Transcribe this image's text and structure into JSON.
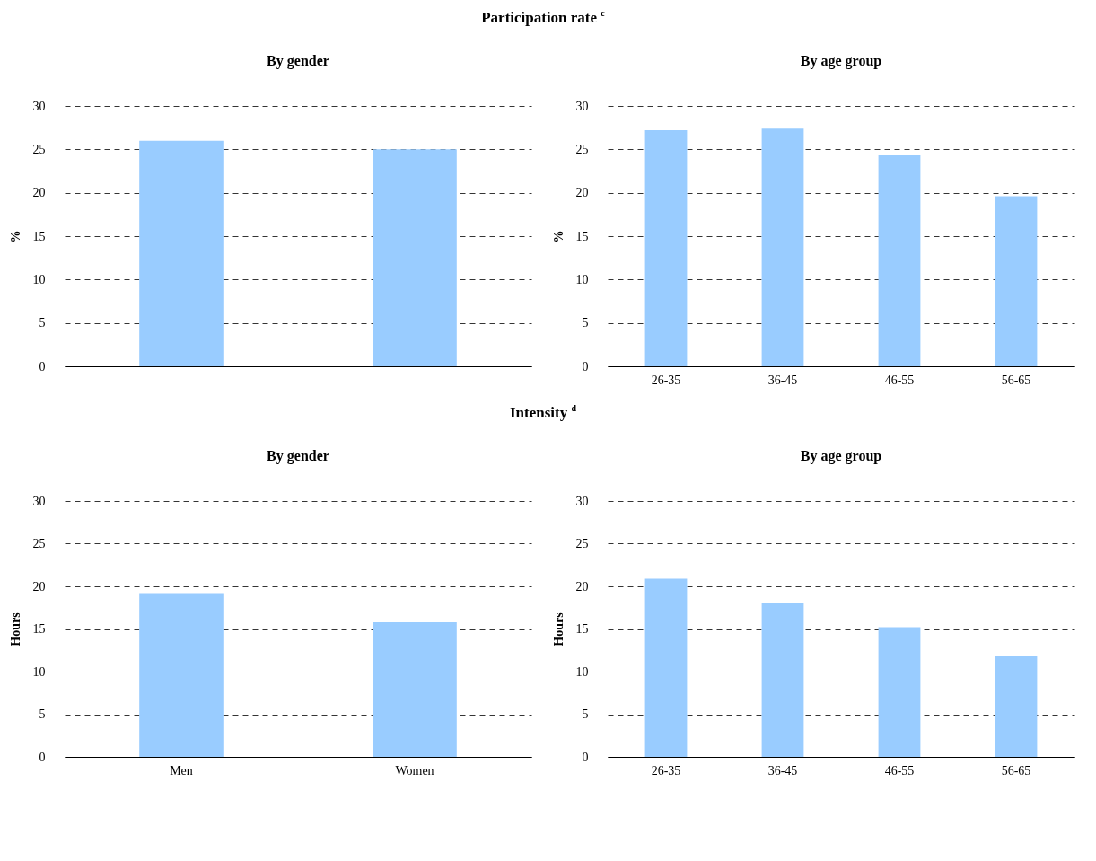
{
  "chart_data": [
    {
      "type": "bar",
      "title": "By gender",
      "annotations": [
        "Participation rate $^{c}$"
      ],
      "ylabel": "%",
      "categories": [
        null,
        null
      ],
      "values": [
        26.0,
        25.0
      ],
      "color": "#99ccff",
      "ylim": [
        0,
        30
      ],
      "yticks": [
        0,
        5,
        10,
        15,
        20,
        25,
        30
      ],
      "grid": "y",
      "tick_labels": "y"
    },
    {
      "type": "bar",
      "title": "By age group",
      "ylabel": "%",
      "categories": [
        "26-35",
        "36-45",
        "46-55",
        "56-65"
      ],
      "values": [
        27.2,
        27.4,
        24.3,
        19.6
      ],
      "color": "#99ccff",
      "ylim": [
        0,
        30
      ],
      "yticks": [
        0,
        5,
        10,
        15,
        20,
        25,
        30
      ],
      "grid": "y"
    },
    {
      "type": "bar",
      "title": "By gender",
      "annotations": [
        "Intensity $^{d}$"
      ],
      "ylabel": "Hours",
      "categories": [
        "Men",
        "Women"
      ],
      "values": [
        19.1,
        15.8
      ],
      "color": "#99ccff",
      "ylim": [
        0,
        30
      ],
      "yticks": [
        0,
        5,
        10,
        15,
        20,
        25,
        30
      ],
      "grid": "y"
    },
    {
      "type": "bar",
      "title": "By age group",
      "ylabel": "Hours",
      "categories": [
        "26-35",
        "36-45",
        "46-55",
        "56-65"
      ],
      "values": [
        20.9,
        18.0,
        15.2,
        11.8
      ],
      "color": "#99ccff",
      "ylim": [
        0,
        30
      ],
      "yticks": [
        0,
        5,
        10,
        15,
        20,
        25,
        30
      ],
      "grid": "y"
    }
  ]
}
